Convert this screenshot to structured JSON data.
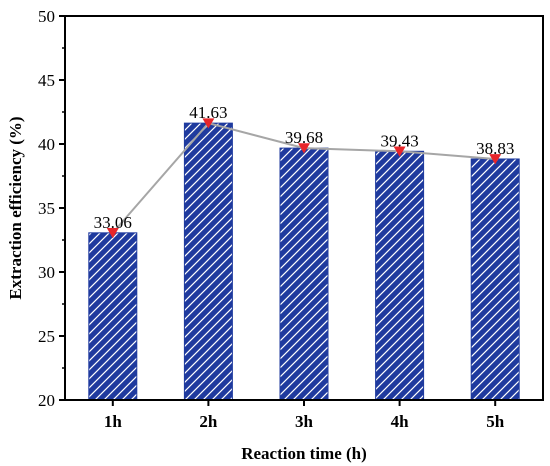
{
  "chart_data": {
    "type": "bar",
    "title": "",
    "xlabel": "Reaction time (h)",
    "ylabel": "Extraction efficiency (%)",
    "categories": [
      "1h",
      "2h",
      "3h",
      "4h",
      "5h"
    ],
    "values": [
      33.06,
      41.63,
      39.68,
      39.43,
      38.83
    ],
    "data_labels": [
      "33.06",
      "41.63",
      "39.68",
      "39.43",
      "38.83"
    ],
    "ylim": [
      20,
      50
    ],
    "yticks": [
      20,
      25,
      30,
      35,
      40,
      45,
      50
    ],
    "ytick_labels": [
      "20",
      "25",
      "30",
      "35",
      "40",
      "45",
      "50"
    ],
    "grid": false,
    "legend": "none",
    "overlay_line": {
      "type": "line",
      "marker": "down-triangle",
      "values": [
        33.06,
        41.63,
        39.68,
        39.43,
        38.83
      ]
    },
    "colors": {
      "bar_fill": "#1f3a9e",
      "bar_hatch": "#ffffff",
      "line": "#a6a6a6",
      "marker": "#e8262a",
      "axis": "#000000"
    }
  }
}
